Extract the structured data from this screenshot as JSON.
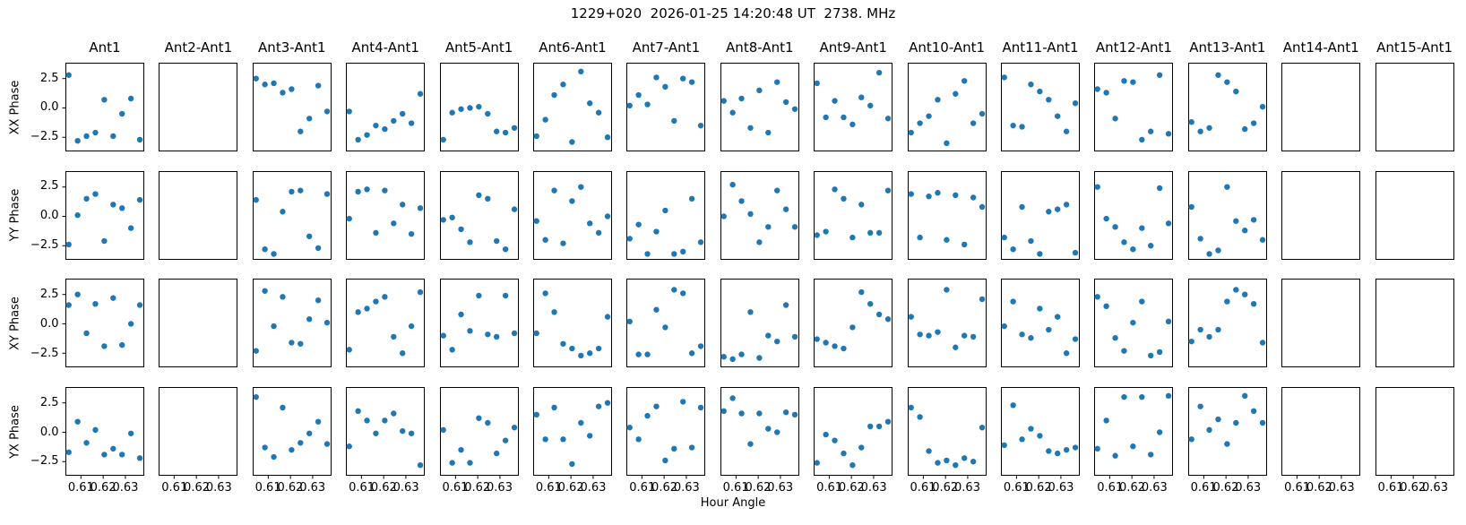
{
  "title": "1229+020  2026-01-25 14:20:48 UT  2738. MHz",
  "xlabel": "Hour Angle",
  "row_labels": [
    "XX Phase",
    "YY Phase",
    "XY Phase",
    "YX Phase"
  ],
  "col_titles": [
    "Ant1",
    "Ant2-Ant1",
    "Ant3-Ant1",
    "Ant4-Ant1",
    "Ant5-Ant1",
    "Ant6-Ant1",
    "Ant7-Ant1",
    "Ant8-Ant1",
    "Ant9-Ant1",
    "Ant10-Ant1",
    "Ant11-Ant1",
    "Ant12-Ant1",
    "Ant13-Ant1",
    "Ant14-Ant1",
    "Ant15-Ant1"
  ],
  "x_tick_labels": [
    "0.61",
    "0.62",
    "0.63"
  ],
  "x_ticks": [
    0.61,
    0.62,
    0.63
  ],
  "y_tick_labels": [
    "2.5",
    "0.0",
    "−2.5"
  ],
  "y_ticks": [
    2.5,
    0.0,
    -2.5
  ],
  "colors": {
    "marker": "#1f77b4",
    "axis": "#000000",
    "background": "#ffffff"
  },
  "chart_data": {
    "type": "scatter",
    "title": "1229+020  2026-01-25 14:20:48 UT  2738. MHz",
    "xlabel": "Hour Angle",
    "legend": null,
    "grid": false,
    "xlim": [
      0.603,
      0.6385
    ],
    "ylim": [
      -3.7,
      3.85
    ],
    "x": [
      0.6045,
      0.6085,
      0.6125,
      0.6165,
      0.6205,
      0.6245,
      0.6285,
      0.6325,
      0.6365
    ],
    "rows": [
      {
        "label": "XX Phase",
        "panels": [
          {
            "col": "Ant1",
            "y": [
              2.8,
              -2.8,
              -2.4,
              -2.1,
              0.7,
              -2.4,
              -0.5,
              0.8,
              -2.7
            ]
          },
          {
            "col": "Ant2-Ant1",
            "y": null
          },
          {
            "col": "Ant3-Ant1",
            "y": [
              2.5,
              2.0,
              2.1,
              1.3,
              1.6,
              -2.0,
              -0.9,
              1.9,
              -0.3
            ]
          },
          {
            "col": "Ant4-Ant1",
            "y": [
              -0.3,
              -2.7,
              -2.3,
              -1.5,
              -1.8,
              -1.1,
              -0.5,
              -1.3,
              1.2
            ]
          },
          {
            "col": "Ant5-Ant1",
            "y": [
              -2.7,
              -0.4,
              -0.1,
              0.0,
              0.1,
              -0.5,
              -2.0,
              -2.1,
              -1.7
            ]
          },
          {
            "col": "Ant6-Ant1",
            "y": [
              -2.4,
              -1.0,
              1.1,
              2.0,
              -2.9,
              3.1,
              0.4,
              -0.4,
              -2.5
            ]
          },
          {
            "col": "Ant7-Ant1",
            "y": [
              0.2,
              1.1,
              0.3,
              2.6,
              1.8,
              -1.1,
              2.5,
              2.2,
              -1.5
            ]
          },
          {
            "col": "Ant8-Ant1",
            "y": [
              0.6,
              -0.4,
              0.8,
              -1.7,
              1.5,
              -2.1,
              2.2,
              0.5,
              -0.1
            ]
          },
          {
            "col": "Ant9-Ant1",
            "y": [
              2.1,
              -0.8,
              0.6,
              -0.8,
              -1.4,
              0.9,
              0.2,
              3.0,
              -0.9
            ]
          },
          {
            "col": "Ant10-Ant1",
            "y": [
              -2.1,
              -1.3,
              -0.7,
              0.7,
              -3.0,
              1.2,
              2.3,
              -1.3,
              -0.5
            ]
          },
          {
            "col": "Ant11-Ant1",
            "y": [
              2.6,
              -1.5,
              -1.6,
              2.0,
              1.4,
              0.7,
              -0.7,
              -2.0,
              0.4
            ]
          },
          {
            "col": "Ant12-Ant1",
            "y": [
              1.6,
              1.3,
              -0.9,
              2.3,
              2.2,
              -2.7,
              -2.0,
              2.8,
              -2.2
            ]
          },
          {
            "col": "Ant13-Ant1",
            "y": [
              -1.2,
              -2.0,
              -1.7,
              2.8,
              2.2,
              1.4,
              -1.8,
              -1.3,
              0.1
            ]
          },
          {
            "col": "Ant14-Ant1",
            "y": null
          },
          {
            "col": "Ant15-Ant1",
            "y": null
          }
        ]
      },
      {
        "label": "YY Phase",
        "panels": [
          {
            "col": "Ant1",
            "y": [
              -2.4,
              0.1,
              1.5,
              1.9,
              -2.1,
              1.0,
              0.7,
              -1.0,
              1.4
            ]
          },
          {
            "col": "Ant2-Ant1",
            "y": null
          },
          {
            "col": "Ant3-Ant1",
            "y": [
              1.4,
              -2.8,
              -3.2,
              0.4,
              2.1,
              2.2,
              -1.7,
              -2.7,
              1.9
            ]
          },
          {
            "col": "Ant4-Ant1",
            "y": [
              -0.2,
              2.1,
              2.3,
              -1.4,
              2.2,
              -0.6,
              1.0,
              -1.5,
              0.7
            ]
          },
          {
            "col": "Ant5-Ant1",
            "y": [
              -0.3,
              -0.1,
              -1.1,
              -2.2,
              1.8,
              1.5,
              -2.1,
              -2.8,
              0.6
            ]
          },
          {
            "col": "Ant6-Ant1",
            "y": [
              -0.4,
              -2.0,
              2.2,
              -2.3,
              1.3,
              2.5,
              -0.6,
              -1.4,
              0.0
            ]
          },
          {
            "col": "Ant7-Ant1",
            "y": [
              -1.9,
              -0.7,
              -3.2,
              -1.3,
              0.5,
              -3.2,
              -3.0,
              1.5,
              -2.2
            ]
          },
          {
            "col": "Ant8-Ant1",
            "y": [
              0.0,
              2.7,
              1.3,
              0.2,
              -2.2,
              -0.9,
              2.2,
              0.6,
              -0.9
            ]
          },
          {
            "col": "Ant9-Ant1",
            "y": [
              -1.6,
              -1.3,
              2.3,
              1.5,
              -1.8,
              1.0,
              -1.4,
              -1.4,
              2.2
            ]
          },
          {
            "col": "Ant10-Ant1",
            "y": [
              1.9,
              -1.8,
              1.7,
              2.0,
              -2.0,
              1.8,
              -2.4,
              1.6,
              0.8
            ]
          },
          {
            "col": "Ant11-Ant1",
            "y": [
              -1.8,
              -2.8,
              0.8,
              -2.1,
              -3.2,
              0.4,
              0.6,
              1.0,
              -3.1
            ]
          },
          {
            "col": "Ant12-Ant1",
            "y": [
              2.5,
              -0.2,
              -0.9,
              -2.2,
              -2.8,
              -1.0,
              -2.5,
              2.4,
              -0.6
            ]
          },
          {
            "col": "Ant13-Ant1",
            "y": [
              0.8,
              -1.9,
              -3.2,
              -2.9,
              2.5,
              -0.4,
              -1.2,
              -0.3,
              -2.0
            ]
          },
          {
            "col": "Ant14-Ant1",
            "y": null
          },
          {
            "col": "Ant15-Ant1",
            "y": null
          }
        ]
      },
      {
        "label": "XY Phase",
        "panels": [
          {
            "col": "Ant1",
            "y": [
              1.6,
              2.5,
              -0.8,
              1.7,
              -1.9,
              2.2,
              -1.8,
              0.0,
              1.6
            ]
          },
          {
            "col": "Ant2-Ant1",
            "y": null
          },
          {
            "col": "Ant3-Ant1",
            "y": [
              -2.3,
              2.8,
              -0.2,
              2.3,
              -1.6,
              -1.7,
              0.4,
              2.0,
              0.1
            ]
          },
          {
            "col": "Ant4-Ant1",
            "y": [
              -2.2,
              1.0,
              1.3,
              1.9,
              2.3,
              -1.1,
              -2.5,
              -0.2,
              2.7
            ]
          },
          {
            "col": "Ant5-Ant1",
            "y": [
              -1.0,
              -2.2,
              0.8,
              -0.6,
              2.4,
              -0.9,
              -1.1,
              2.4,
              -0.8
            ]
          },
          {
            "col": "Ant6-Ant1",
            "y": [
              -0.8,
              2.6,
              1.0,
              -1.7,
              -2.1,
              -2.7,
              -2.5,
              -2.1,
              0.6
            ]
          },
          {
            "col": "Ant7-Ant1",
            "y": [
              0.2,
              -2.6,
              -2.6,
              1.2,
              -0.3,
              2.9,
              2.6,
              -2.5,
              -1.9
            ]
          },
          {
            "col": "Ant8-Ant1",
            "y": [
              -2.8,
              -3.0,
              -2.6,
              1.0,
              -2.9,
              -1.0,
              -1.5,
              1.6,
              -1.1
            ]
          },
          {
            "col": "Ant9-Ant1",
            "y": [
              -1.3,
              -1.6,
              -1.9,
              -2.1,
              -0.3,
              2.7,
              1.7,
              0.8,
              0.4
            ]
          },
          {
            "col": "Ant10-Ant1",
            "y": [
              0.6,
              -0.9,
              -1.0,
              -0.7,
              2.9,
              -2.0,
              -1.0,
              -1.1,
              2.1
            ]
          },
          {
            "col": "Ant11-Ant1",
            "y": [
              -0.2,
              1.9,
              -0.9,
              -1.2,
              1.3,
              -0.5,
              0.6,
              -2.5,
              -1.3
            ]
          },
          {
            "col": "Ant12-Ant1",
            "y": [
              2.3,
              1.5,
              -1.2,
              -2.3,
              0.1,
              1.9,
              -2.7,
              -2.4,
              0.2
            ]
          },
          {
            "col": "Ant13-Ant1",
            "y": [
              -1.5,
              -0.5,
              -1.1,
              -0.5,
              1.9,
              2.9,
              2.5,
              1.7,
              -1.6
            ]
          },
          {
            "col": "Ant14-Ant1",
            "y": null
          },
          {
            "col": "Ant15-Ant1",
            "y": null
          }
        ]
      },
      {
        "label": "YX Phase",
        "panels": [
          {
            "col": "Ant1",
            "y": [
              -1.7,
              0.9,
              -0.9,
              0.2,
              -1.9,
              -1.4,
              -1.9,
              -0.1,
              -2.2
            ]
          },
          {
            "col": "Ant2-Ant1",
            "y": null
          },
          {
            "col": "Ant3-Ant1",
            "y": [
              3.0,
              -1.3,
              -2.1,
              2.1,
              -1.5,
              -0.9,
              -0.1,
              0.9,
              -1.0
            ]
          },
          {
            "col": "Ant4-Ant1",
            "y": [
              -1.2,
              1.8,
              1.0,
              -0.1,
              1.0,
              1.6,
              0.1,
              -0.1,
              -2.8
            ]
          },
          {
            "col": "Ant5-Ant1",
            "y": [
              0.2,
              -2.6,
              -1.5,
              -2.6,
              1.2,
              0.8,
              -1.8,
              -0.7,
              0.4
            ]
          },
          {
            "col": "Ant6-Ant1",
            "y": [
              1.5,
              -0.6,
              2.1,
              -0.6,
              -2.7,
              0.8,
              -0.3,
              2.2,
              2.5
            ]
          },
          {
            "col": "Ant7-Ant1",
            "y": [
              0.4,
              -0.6,
              1.4,
              2.2,
              -2.4,
              -1.4,
              2.6,
              -1.3,
              2.1
            ]
          },
          {
            "col": "Ant8-Ant1",
            "y": [
              1.8,
              2.9,
              1.6,
              -1.0,
              1.6,
              0.3,
              0.0,
              1.7,
              1.5
            ]
          },
          {
            "col": "Ant9-Ant1",
            "y": [
              -2.6,
              -0.2,
              -0.7,
              -1.8,
              -2.8,
              -1.3,
              0.5,
              0.5,
              0.9
            ]
          },
          {
            "col": "Ant10-Ant1",
            "y": [
              2.1,
              1.3,
              -1.6,
              -2.6,
              -2.4,
              -2.8,
              -2.2,
              -2.5,
              0.4
            ]
          },
          {
            "col": "Ant11-Ant1",
            "y": [
              -1.1,
              2.3,
              -0.6,
              0.3,
              -0.3,
              -1.6,
              -1.8,
              -1.5,
              -1.3
            ]
          },
          {
            "col": "Ant12-Ant1",
            "y": [
              -1.4,
              1.0,
              -2.0,
              3.0,
              -1.2,
              3.0,
              -1.9,
              0.0,
              3.1
            ]
          },
          {
            "col": "Ant13-Ant1",
            "y": [
              -0.6,
              2.2,
              0.2,
              1.1,
              -1.0,
              0.8,
              3.1,
              1.8,
              0.8
            ]
          },
          {
            "col": "Ant14-Ant1",
            "y": null
          },
          {
            "col": "Ant15-Ant1",
            "y": null
          }
        ]
      }
    ]
  }
}
